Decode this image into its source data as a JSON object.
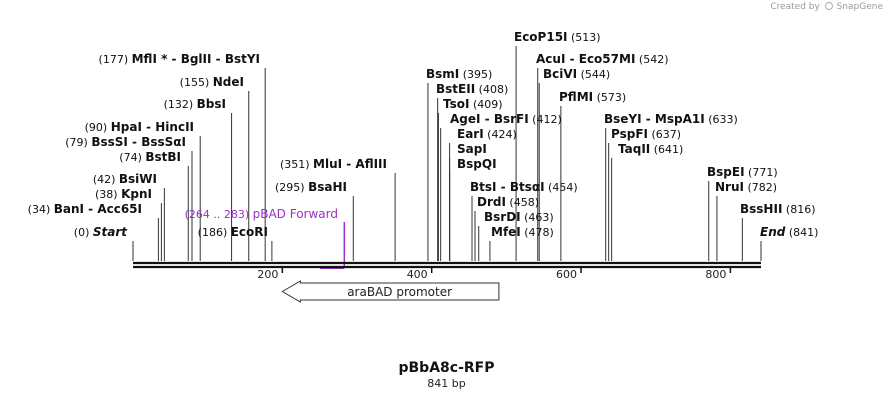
{
  "app": {
    "credit_prefix": "Created by",
    "credit_brand": "SnapGene"
  },
  "sequence": {
    "name": "pBbA8c-RFP",
    "length_label": "841 bp",
    "length": 841
  },
  "colors": {
    "site_line": "#333333",
    "label": "#111111",
    "primer": "#9b30c8",
    "feature_fill": "#ffffff",
    "feature_stroke": "#333333"
  },
  "ruler": {
    "ticks": [
      200,
      400,
      600,
      800
    ]
  },
  "sites": [
    {
      "pos": "(177)",
      "text": "MflI * - BglII  - BstYI",
      "loc": 177
    },
    {
      "pos": "(155)",
      "text": "NdeI",
      "loc": 155
    },
    {
      "pos": "(132)",
      "text": "BbsI",
      "loc": 132
    },
    {
      "pos": "(90)",
      "text": "HpaI  - HincII",
      "loc": 90
    },
    {
      "pos": "(79)",
      "text": "BssSI  - BssSαI",
      "loc": 79
    },
    {
      "pos": "(74)",
      "text": "BstBI",
      "loc": 74
    },
    {
      "pos": "(351)",
      "text": "MluI  - AflIII",
      "loc": 351
    },
    {
      "pos": "(42)",
      "text": "BsiWI",
      "loc": 42
    },
    {
      "pos": "(38)",
      "text": "KpnI",
      "loc": 38
    },
    {
      "pos": "(295)",
      "text": "BsaHI",
      "loc": 295
    },
    {
      "pos": "(34)",
      "text": "BanI  - Acc65I",
      "loc": 34
    },
    {
      "pos": "(186)",
      "text": "EcoRI",
      "loc": 186
    },
    {
      "pos": "(0)",
      "text": "Start",
      "loc": 0,
      "italic": true
    },
    {
      "pos": "(513)",
      "text": "EcoP15I",
      "loc": 513
    },
    {
      "pos": "(395)",
      "text": "BsmI",
      "loc": 395
    },
    {
      "pos": "(542)",
      "text": "AcuI  - Eco57MI",
      "loc": 542
    },
    {
      "pos": "(408)",
      "text": "BstEII",
      "loc": 408
    },
    {
      "pos": "(544)",
      "text": "BciVI",
      "loc": 544
    },
    {
      "pos": "(409)",
      "text": "TsoI",
      "loc": 409
    },
    {
      "pos": "(573)",
      "text": "PflMI",
      "loc": 573
    },
    {
      "pos": "(412)",
      "text": "AgeI  - BsrFI",
      "loc": 412
    },
    {
      "pos": "(633)",
      "text": "BseYI  - MspA1I",
      "loc": 633
    },
    {
      "pos": "(424)",
      "text": "EarI",
      "loc": 424
    },
    {
      "pos": "(637)",
      "text": "PspFI",
      "loc": 637
    },
    {
      "pos": "",
      "text": "SapI",
      "loc": 424
    },
    {
      "pos": "(641)",
      "text": "TaqII",
      "loc": 641
    },
    {
      "pos": "",
      "text": "BspQI",
      "loc": 424
    },
    {
      "pos": "(454)",
      "text": "BtsI  - BtsαI",
      "loc": 454
    },
    {
      "pos": "(771)",
      "text": "BspEI",
      "loc": 771
    },
    {
      "pos": "(458)",
      "text": "DrdI",
      "loc": 458
    },
    {
      "pos": "(782)",
      "text": "NruI",
      "loc": 782
    },
    {
      "pos": "(463)",
      "text": "BsrDI",
      "loc": 463
    },
    {
      "pos": "(816)",
      "text": "BssHII",
      "loc": 816
    },
    {
      "pos": "(478)",
      "text": "MfeI",
      "loc": 478
    },
    {
      "pos": "(841)",
      "text": "End",
      "loc": 841,
      "italic": true
    }
  ],
  "primer": {
    "range_label": "(264 .. 283)",
    "name": "pBAD Forward",
    "start": 264,
    "end": 283
  },
  "feature": {
    "name": "araBAD promoter",
    "start": 200,
    "end": 490,
    "direction": "reverse"
  }
}
